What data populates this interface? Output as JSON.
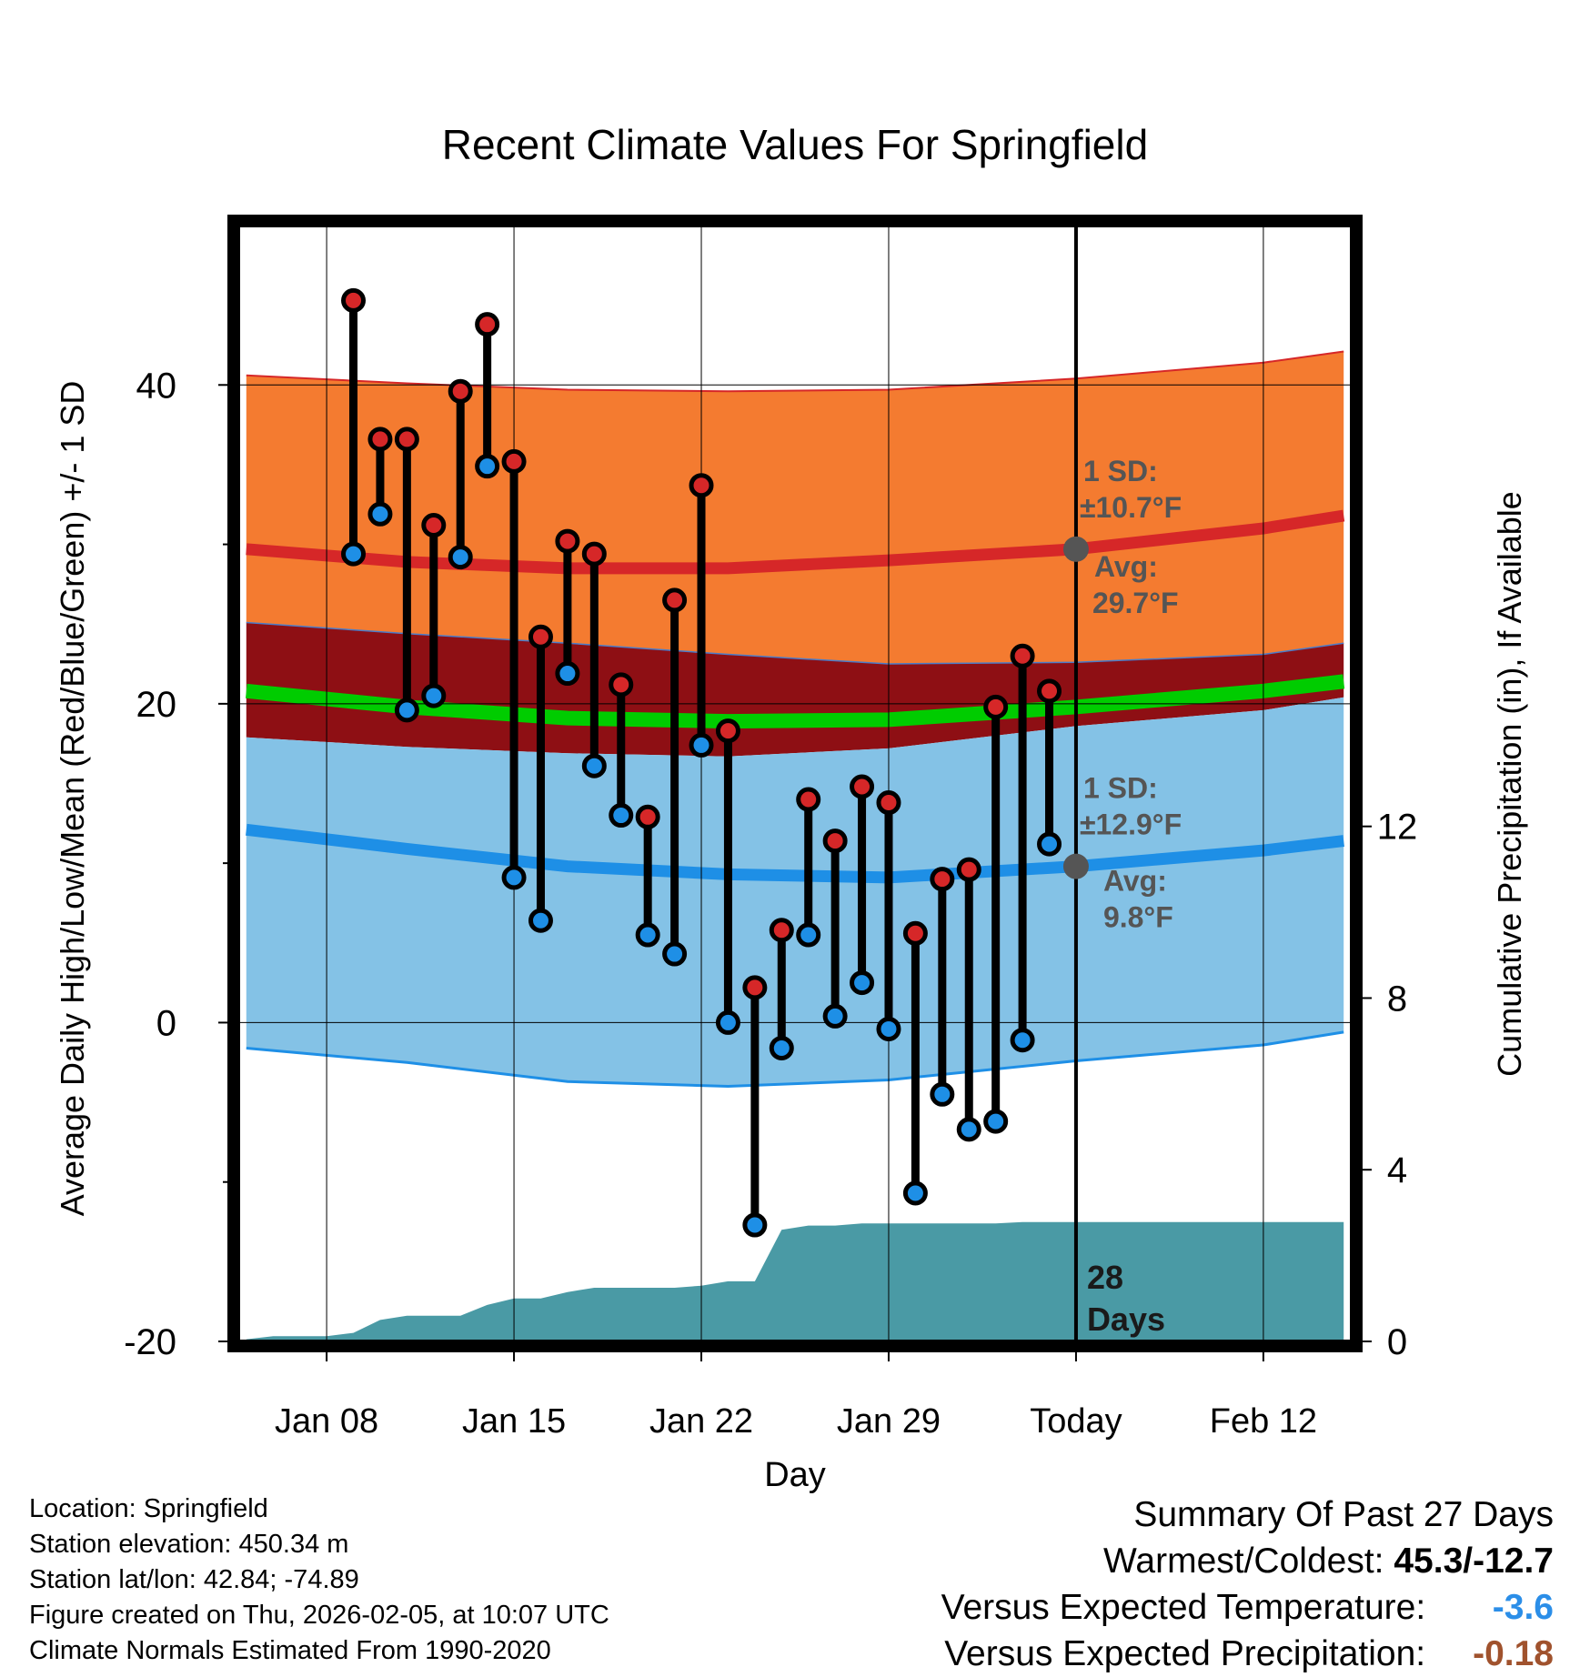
{
  "chart_data": {
    "type": "line",
    "title": "Recent Climate Values For Springfield",
    "xlabel": "Day",
    "ylabel": "Average Daily High/Low/Mean (Red/Blue/Green) +/- 1 SD",
    "y2label": "Cumulative Precipitation (in), If Available",
    "xlim": [
      -3.3,
      38.3
    ],
    "ylim": [
      -20,
      50
    ],
    "y2lim": [
      0,
      26
    ],
    "x_ticks": [
      {
        "x": 0,
        "label": "Jan 08"
      },
      {
        "x": 7,
        "label": "Jan 15"
      },
      {
        "x": 14,
        "label": "Jan 22"
      },
      {
        "x": 21,
        "label": "Jan 29"
      },
      {
        "x": 28,
        "label": "Today"
      },
      {
        "x": 35,
        "label": "Feb 12"
      }
    ],
    "y_ticks": [
      -20,
      0,
      20,
      40
    ],
    "y_minor_ticks": [
      -10,
      10,
      30
    ],
    "y2_ticks": [
      0,
      4,
      8,
      12
    ],
    "today_x": 28,
    "today_label": "28\nDays",
    "days_label_line1": "28",
    "days_label_line2": "Days",
    "series": [
      {
        "name": "Daily High",
        "color": "#d62728",
        "x": [
          1,
          2,
          3,
          4,
          5,
          6,
          7,
          8,
          9,
          10,
          11,
          12,
          13,
          14,
          15,
          16,
          17,
          18,
          19,
          20,
          21,
          22,
          23,
          24,
          25,
          26,
          27
        ],
        "values": [
          45.3,
          36.6,
          36.6,
          31.2,
          39.6,
          43.8,
          35.2,
          24.2,
          30.2,
          29.4,
          21.2,
          12.9,
          26.5,
          33.7,
          18.3,
          2.2,
          5.8,
          14.0,
          11.4,
          14.8,
          13.8,
          5.6,
          9.0,
          9.6,
          19.8,
          23.0,
          20.8
        ]
      },
      {
        "name": "Daily Low",
        "color": "#1e8fe6",
        "x": [
          1,
          2,
          3,
          4,
          5,
          6,
          7,
          8,
          9,
          10,
          11,
          12,
          13,
          14,
          15,
          16,
          17,
          18,
          19,
          20,
          21,
          22,
          23,
          24,
          25,
          26,
          27
        ],
        "values": [
          29.4,
          31.9,
          19.6,
          20.5,
          29.2,
          34.9,
          9.1,
          6.4,
          21.9,
          16.1,
          13.0,
          5.5,
          4.3,
          17.4,
          0.0,
          -12.7,
          -1.6,
          5.5,
          0.4,
          2.5,
          -0.4,
          -10.7,
          -4.5,
          -6.7,
          -6.2,
          -1.1,
          11.2
        ]
      },
      {
        "name": "Normal High",
        "color": "#d62728",
        "x": [
          -3,
          3,
          9,
          15,
          21,
          28,
          35,
          38
        ],
        "values": [
          29.7,
          28.9,
          28.5,
          28.5,
          29.0,
          29.7,
          31.0,
          31.8
        ]
      },
      {
        "name": "Normal Low",
        "color": "#1e8fe6",
        "x": [
          -3,
          3,
          9,
          15,
          21,
          28,
          35,
          38
        ],
        "values": [
          12.1,
          10.9,
          9.8,
          9.3,
          9.1,
          9.8,
          10.8,
          11.4
        ]
      },
      {
        "name": "Normal Mean",
        "color": "#00cc00",
        "x": [
          -3,
          3,
          9,
          15,
          21,
          28,
          35,
          38
        ],
        "values": [
          20.8,
          19.8,
          19.1,
          18.9,
          19.0,
          19.8,
          20.8,
          21.4
        ]
      },
      {
        "name": "High +1 SD",
        "x": [
          -3,
          3,
          9,
          15,
          21,
          28,
          35,
          38
        ],
        "values": [
          40.6,
          40.1,
          39.7,
          39.6,
          39.7,
          40.4,
          41.4,
          42.1
        ]
      },
      {
        "name": "High -1 SD",
        "x": [
          -3,
          3,
          9,
          15,
          21,
          28,
          35,
          38
        ],
        "values": [
          25.1,
          24.4,
          23.8,
          23.1,
          22.5,
          22.6,
          23.1,
          23.8
        ]
      },
      {
        "name": "Low +1 SD",
        "x": [
          -3,
          3,
          9,
          15,
          21,
          28,
          35,
          38
        ],
        "values": [
          17.9,
          17.3,
          16.9,
          16.7,
          17.2,
          18.6,
          19.6,
          20.4
        ]
      },
      {
        "name": "Low -1 SD",
        "x": [
          -3,
          3,
          9,
          15,
          21,
          28,
          35,
          38
        ],
        "values": [
          -1.6,
          -2.5,
          -3.7,
          -4.0,
          -3.6,
          -2.4,
          -1.4,
          -0.6
        ]
      },
      {
        "name": "Cumulative Precipitation",
        "color": "#4a9aa5",
        "x": [
          -3,
          -2,
          -1,
          0,
          1,
          2,
          3,
          4,
          5,
          6,
          7,
          8,
          9,
          10,
          11,
          12,
          13,
          14,
          15,
          16,
          17,
          18,
          19,
          20,
          21,
          22,
          23,
          24,
          25,
          26,
          27,
          28,
          29,
          30,
          31,
          32,
          33,
          34,
          35,
          36,
          37,
          38
        ],
        "values": [
          0.05,
          0.12,
          0.12,
          0.12,
          0.2,
          0.5,
          0.6,
          0.6,
          0.6,
          0.85,
          1.0,
          1.0,
          1.15,
          1.25,
          1.25,
          1.25,
          1.25,
          1.3,
          1.4,
          1.4,
          2.6,
          2.7,
          2.7,
          2.75,
          2.75,
          2.75,
          2.75,
          2.75,
          2.75,
          2.78,
          2.78,
          2.78,
          2.78,
          2.78,
          2.78,
          2.78,
          2.78,
          2.78,
          2.78,
          2.78,
          2.78,
          2.78
        ]
      }
    ],
    "annotations": {
      "high": {
        "sd_label": "1 SD:",
        "sd_value": "±10.7°F",
        "avg_label": "Avg:",
        "avg_value": "29.7°F",
        "avg": 29.7
      },
      "low": {
        "sd_label": "1 SD:",
        "sd_value": "±12.9°F",
        "avg_label": "Avg:",
        "avg_value": "9.8°F",
        "avg": 9.8
      }
    }
  },
  "info": {
    "location": "Location: Springfield",
    "elevation": "Station elevation: 450.34 m",
    "latlon": "Station lat/lon: 42.84; -74.89",
    "created": "Figure created on Thu, 2026-02-05, at 10:07 UTC",
    "normals": "Climate Normals Estimated From 1990-2020"
  },
  "summary": {
    "heading": "Summary Of Past 27 Days",
    "warmest_label": "Warmest/Coldest:",
    "warmest_value": "45.3/-12.7",
    "temp_label": "Versus Expected Temperature:",
    "temp_value": "-3.6",
    "temp_color": "#2b8ee8",
    "precip_label": "Versus Expected Precipitation:",
    "precip_value": "-0.18",
    "precip_color": "#a0522d"
  }
}
